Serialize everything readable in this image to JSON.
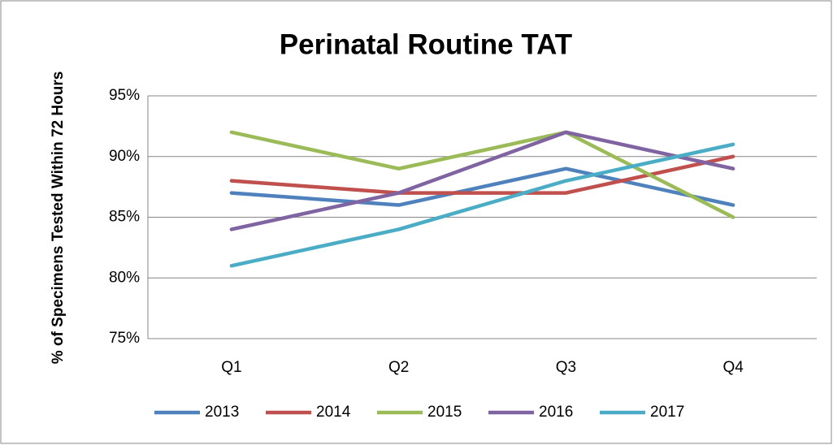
{
  "chart_data": {
    "type": "line",
    "title": "Perinatal Routine TAT",
    "y_label": "% of Specimens Tested Within 72 Hours",
    "categories": [
      "Q1",
      "Q2",
      "Q3",
      "Q4"
    ],
    "series": [
      {
        "name": "2013",
        "color": "#4f81bd",
        "values": [
          87,
          86,
          89,
          86
        ]
      },
      {
        "name": "2014",
        "color": "#c0504d",
        "values": [
          88,
          87,
          87,
          90
        ]
      },
      {
        "name": "2015",
        "color": "#9bbb59",
        "values": [
          92,
          89,
          92,
          85
        ]
      },
      {
        "name": "2016",
        "color": "#8064a2",
        "values": [
          84,
          87,
          92,
          89
        ]
      },
      {
        "name": "2017",
        "color": "#4bacc6",
        "values": [
          81,
          84,
          88,
          91
        ]
      }
    ],
    "ylim": [
      75,
      95
    ],
    "yticks": [
      {
        "value": 75,
        "label": "75%"
      },
      {
        "value": 80,
        "label": "80%"
      },
      {
        "value": 85,
        "label": "85%"
      },
      {
        "value": 90,
        "label": "90%"
      },
      {
        "value": 95,
        "label": "95%"
      }
    ],
    "grid": true,
    "legend": "bottom"
  }
}
